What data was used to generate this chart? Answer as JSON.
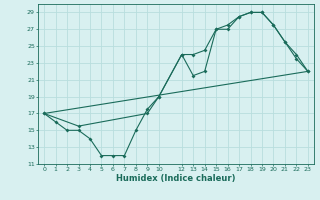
{
  "line1_x": [
    0,
    1,
    2,
    3,
    4,
    5,
    6,
    7,
    8,
    9,
    10,
    12,
    13,
    14,
    15,
    16,
    17,
    18,
    19,
    20,
    21,
    22,
    23
  ],
  "line1_y": [
    17,
    16,
    15,
    15,
    14,
    12,
    12,
    12,
    15,
    17.5,
    19,
    24,
    21.5,
    22,
    27,
    27,
    28.5,
    29,
    29,
    27.5,
    25.5,
    24,
    22
  ],
  "line2_x": [
    0,
    3,
    9,
    10,
    12,
    13,
    14,
    15,
    16,
    17,
    18,
    19,
    20,
    21,
    22,
    23
  ],
  "line2_y": [
    17,
    15.5,
    17,
    19,
    24,
    24,
    24.5,
    27,
    27.5,
    28.5,
    29,
    29,
    27.5,
    25.5,
    23.5,
    22
  ],
  "line3_x": [
    0,
    23
  ],
  "line3_y": [
    17,
    22
  ],
  "line_color": "#1a6b5a",
  "bg_color": "#d8f0f0",
  "grid_color": "#b8dede",
  "xlabel": "Humidex (Indice chaleur)",
  "xlim": [
    -0.5,
    23.5
  ],
  "ylim": [
    11,
    30
  ],
  "yticks": [
    11,
    13,
    15,
    17,
    19,
    21,
    23,
    25,
    27,
    29
  ],
  "xticks": [
    0,
    1,
    2,
    3,
    4,
    5,
    6,
    7,
    8,
    9,
    10,
    12,
    13,
    14,
    15,
    16,
    17,
    18,
    19,
    20,
    21,
    22,
    23
  ]
}
